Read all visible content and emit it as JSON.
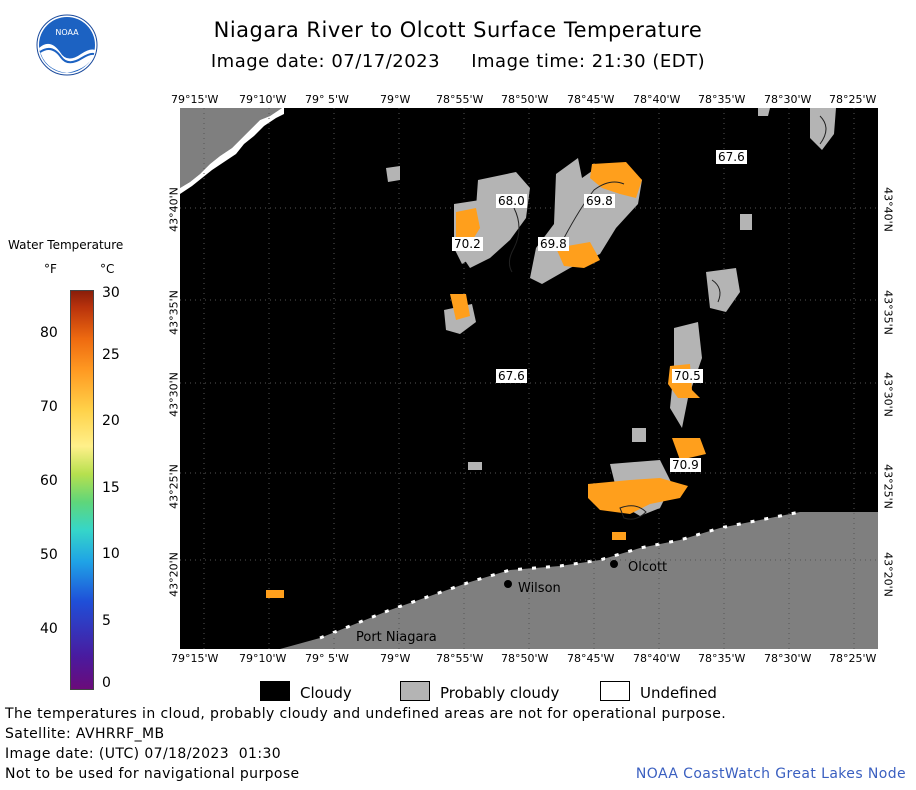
{
  "header": {
    "title": "Niagara River to Olcott Surface Temperature",
    "subtitle": "Image date: 07/17/2023     Image time: 21:30 (EDT)"
  },
  "logo": {
    "text": "NOAA"
  },
  "axes": {
    "lon_ticks": [
      "79°15'W",
      "79°10'W",
      "79° 5'W",
      "79°W",
      "78°55'W",
      "78°50'W",
      "78°45'W",
      "78°40'W",
      "78°35'W",
      "78°30'W",
      "78°25'W"
    ],
    "lat_ticks": [
      "43°40'N",
      "43°35'N",
      "43°30'N",
      "43°25'N",
      "43°20'N"
    ]
  },
  "legend": {
    "title": "Water Temperature",
    "unit_f": "°F",
    "unit_c": "°C",
    "f_ticks": [
      "80",
      "70",
      "60",
      "50",
      "40"
    ],
    "c_ticks": [
      "30",
      "25",
      "20",
      "15",
      "10",
      "5",
      "0"
    ]
  },
  "map": {
    "temperature_labels": [
      "67.6",
      "68.0",
      "69.8",
      "69.8",
      "70.2",
      "67.6",
      "70.5",
      "70.9"
    ],
    "places": [
      "Olcott",
      "Wilson",
      "Port Niagara"
    ]
  },
  "key": {
    "cloudy": "Cloudy",
    "probably_cloudy": "Probably cloudy",
    "undefined": "Undefined"
  },
  "footer": {
    "note": "The temperatures in cloud, probably cloudy and undefined areas are not for operational purpose.",
    "satellite": "Satellite: AVHRRF_MB",
    "utc_date": "Image date: (UTC) 07/18/2023  01:30",
    "disclaimer": "Not to be used for navigational purpose",
    "credit": "NOAA CoastWatch Great Lakes Node"
  },
  "colors": {
    "cloud": "#000000",
    "probably_cloudy": "#b4b4b4",
    "land": "#7f7f7f",
    "warm_water": "#ff9f1c",
    "water_label_bg": "#ffffff"
  }
}
